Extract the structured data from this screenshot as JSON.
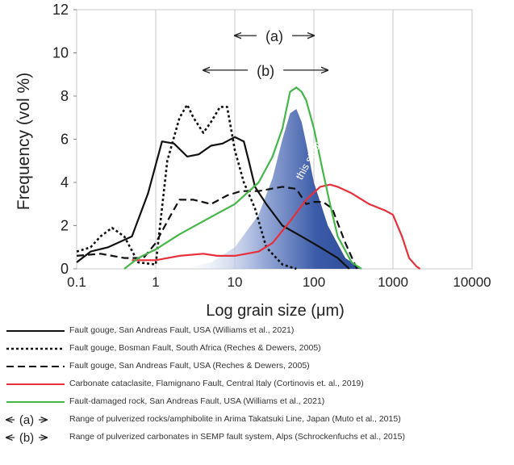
{
  "chart_data": {
    "type": "line",
    "ylabel": "Frequency (vol %)",
    "xlabel": "Log grain size  (μm)",
    "xscale": "log",
    "xlim": [
      0.1,
      10000
    ],
    "ylim": [
      0,
      12
    ],
    "x_ticks": [
      "0.1",
      "1",
      "10",
      "100",
      "1000",
      "10000"
    ],
    "y_ticks": [
      "0",
      "2",
      "4",
      "6",
      "8",
      "10",
      "12"
    ],
    "grid": "vertical lines at decades",
    "legend_position": "below",
    "ranges": [
      {
        "label": "(a)",
        "from": 10,
        "to": 100,
        "y": 10.8
      },
      {
        "label": "(b)",
        "from": 4,
        "to": 150,
        "y": 9.2
      }
    ],
    "filled_area": {
      "name": "this study",
      "color": "#3b5ba8",
      "x": [
        2,
        5,
        10,
        20,
        30,
        40,
        50,
        60,
        70,
        80,
        100,
        150,
        250,
        400
      ],
      "y": [
        0,
        0.3,
        1.0,
        2.5,
        4.2,
        6.0,
        7.2,
        7.4,
        6.8,
        5.8,
        4.0,
        2.0,
        0.5,
        0
      ]
    },
    "series": [
      {
        "name": "Fault gouge, San Andreas Fault, USA (Williams et al., 2021)",
        "color": "#111111",
        "dash": "solid",
        "x": [
          0.1,
          0.15,
          0.25,
          0.5,
          0.8,
          1.2,
          1.7,
          2.5,
          3.5,
          5,
          7,
          10,
          13,
          15,
          18,
          25,
          40,
          70,
          120,
          200,
          280
        ],
        "y": [
          0.3,
          0.8,
          1.0,
          1.5,
          3.5,
          5.9,
          5.8,
          5.2,
          5.3,
          5.7,
          5.8,
          6.1,
          5.9,
          5.0,
          3.8,
          3.0,
          2.0,
          1.5,
          1.0,
          0.5,
          0
        ]
      },
      {
        "name": "Fault gouge, Bosman Fault, South Africa (Reches & Dewers, 2005)",
        "color": "#111111",
        "dash": "dotted",
        "x": [
          0.1,
          0.15,
          0.2,
          0.28,
          0.4,
          0.6,
          1.0,
          1.4,
          2.0,
          2.5,
          3.0,
          4.0,
          5.0,
          6.5,
          8.0,
          10,
          13,
          18,
          25,
          40,
          60
        ],
        "y": [
          0.8,
          1.0,
          1.5,
          1.9,
          1.5,
          0.3,
          0.2,
          5.0,
          7.0,
          7.6,
          7.0,
          6.3,
          6.8,
          7.5,
          7.5,
          5.5,
          4.0,
          2.8,
          1.0,
          0.2,
          0
        ]
      },
      {
        "name": "Fault gouge, San Andreas Fault, USA (Reches & Dewers, 2005)",
        "color": "#111111",
        "dash": "dashed",
        "x": [
          0.1,
          0.2,
          0.4,
          0.7,
          1.0,
          1.5,
          2.0,
          3.0,
          5.0,
          8.0,
          12,
          20,
          40,
          60,
          80,
          100,
          130,
          170,
          250,
          350
        ],
        "y": [
          0.6,
          0.7,
          0.5,
          0.5,
          1.2,
          2.4,
          3.2,
          3.2,
          3.0,
          3.4,
          3.6,
          3.6,
          3.8,
          3.7,
          3.0,
          3.1,
          3.1,
          2.8,
          1.2,
          0
        ]
      },
      {
        "name": "Carbonate cataclasite, Flamignano Fault, Central Italy (Cortinovis et. al., 2019)",
        "color": "#e8303a",
        "dash": "solid",
        "x": [
          0.5,
          1,
          2,
          4,
          6,
          10,
          20,
          30,
          50,
          80,
          120,
          160,
          200,
          300,
          500,
          800,
          1000,
          1300,
          1600,
          2000,
          2200
        ],
        "y": [
          0.4,
          0.4,
          0.6,
          0.7,
          0.6,
          0.6,
          0.8,
          1.2,
          2.2,
          3.2,
          3.8,
          3.9,
          3.8,
          3.5,
          3.0,
          2.7,
          2.5,
          1.5,
          0.5,
          0.1,
          0
        ]
      },
      {
        "name": "Fault-damaged rock, San Andreas Fault, USA (Williams et al., 2021)",
        "color": "#45b649",
        "dash": "solid",
        "x": [
          0.4,
          0.6,
          1,
          2,
          5,
          10,
          20,
          30,
          40,
          50,
          60,
          70,
          80,
          100,
          130,
          160,
          200,
          300,
          400
        ],
        "y": [
          0,
          0.5,
          0.9,
          1.6,
          2.4,
          3.0,
          4.0,
          5.2,
          6.5,
          8.2,
          8.4,
          8.2,
          7.8,
          6.5,
          4.5,
          3.0,
          1.5,
          0.3,
          0
        ]
      }
    ],
    "annotations": [
      {
        "text": "this study",
        "x": 95,
        "y": 5.0,
        "rotation": -62,
        "color": "#ffffff"
      }
    ]
  },
  "legend": [
    {
      "label": "Fault gouge, San Andreas Fault, USA (Williams et al., 2021)",
      "style": "solid",
      "color": "#111111"
    },
    {
      "label": "Fault gouge, Bosman Fault, South Africa (Reches & Dewers, 2005)",
      "style": "dotted",
      "color": "#111111"
    },
    {
      "label": "Fault gouge, San Andreas Fault, USA (Reches & Dewers, 2005)",
      "style": "dashed",
      "color": "#111111"
    },
    {
      "label": "Carbonate cataclasite, Flamignano Fault, Central Italy (Cortinovis et. al., 2019)",
      "style": "solid",
      "color": "#e8303a"
    },
    {
      "label": "Fault-damaged rock, San Andreas Fault, USA (Williams et al., 2021)",
      "style": "solid",
      "color": "#45b649"
    },
    {
      "label": "Range of pulverized rocks/amphibolite in Arima Takatsuki Line, Japan (Muto et al., 2015)",
      "style": "range",
      "range_label": "(a)"
    },
    {
      "label": "Range of pulverized carbonates in SEMP fault system, Alps (Schrockenfuchs et al., 2015)",
      "style": "range",
      "range_label": "(b)"
    }
  ]
}
